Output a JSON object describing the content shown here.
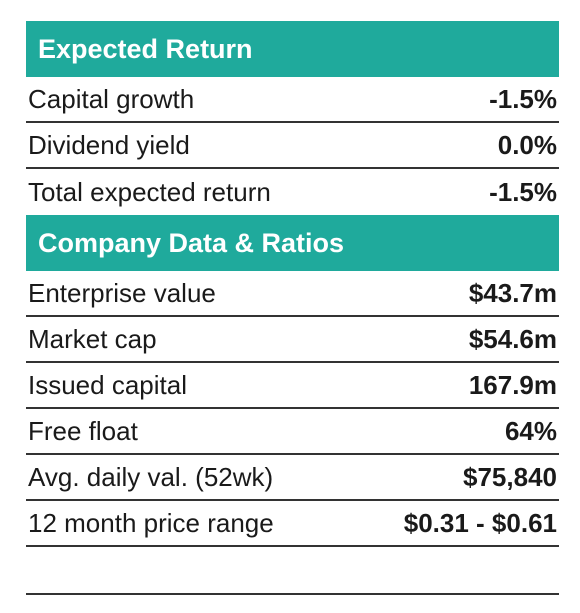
{
  "sections": {
    "expected_return": {
      "title": "Expected Return",
      "rows": [
        {
          "label": "Capital growth",
          "value": "-1.5%"
        },
        {
          "label": "Dividend yield",
          "value": "0.0%"
        },
        {
          "label": "Total expected return",
          "value": "-1.5%"
        }
      ]
    },
    "company_data": {
      "title": "Company Data & Ratios",
      "rows": [
        {
          "label": "Enterprise value",
          "value": "$43.7m"
        },
        {
          "label": "Market cap",
          "value": "$54.6m"
        },
        {
          "label": "Issued capital",
          "value": "167.9m"
        },
        {
          "label": "Free float",
          "value": "64%"
        },
        {
          "label": "Avg. daily val. (52wk)",
          "value": "$75,840"
        },
        {
          "label": "12 month price range",
          "value": "$0.31 - $0.61"
        }
      ]
    }
  },
  "colors": {
    "header_bg": "#1faa9c",
    "header_text": "#ffffff",
    "rule": "#333333"
  }
}
